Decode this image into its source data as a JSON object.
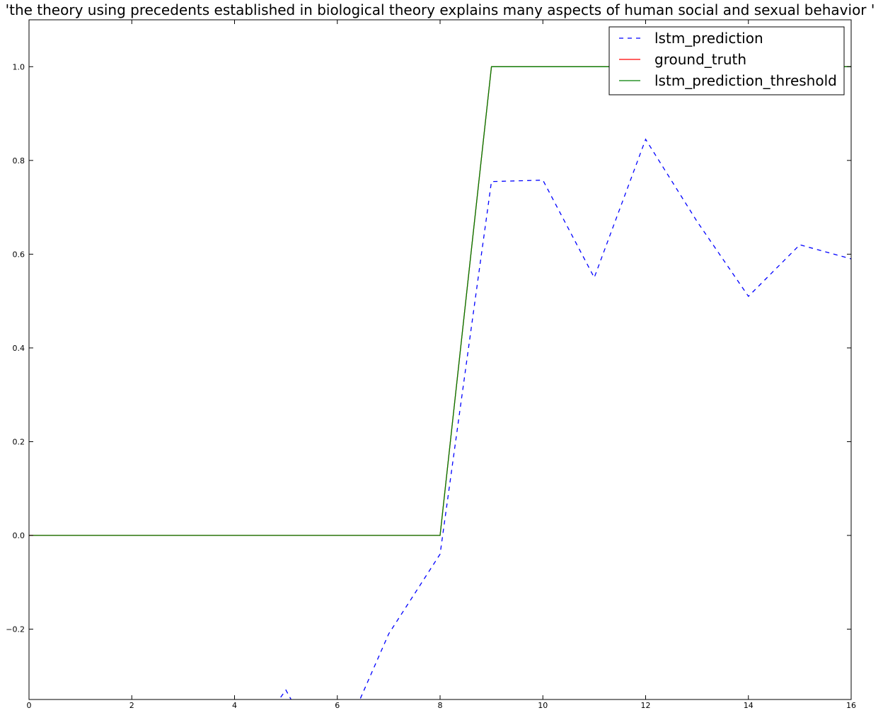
{
  "chart_data": {
    "type": "line",
    "title": "'the theory using precedents established in biological theory explains many aspects of human social and sexual behavior '",
    "xlabel": "",
    "ylabel": "",
    "xlim": [
      0,
      16
    ],
    "ylim": [
      -0.35,
      1.1
    ],
    "x_ticks": [
      0,
      2,
      4,
      6,
      8,
      10,
      12,
      14,
      16
    ],
    "y_ticks": [
      -0.2,
      0.0,
      0.2,
      0.4,
      0.6,
      0.8,
      1.0
    ],
    "x_tick_labels": [
      "0",
      "2",
      "4",
      "6",
      "8",
      "10",
      "12",
      "14",
      "16"
    ],
    "y_tick_labels": [
      "−0.2",
      "0.0",
      "0.2",
      "0.4",
      "0.6",
      "0.8",
      "1.0"
    ],
    "grid": false,
    "legend_position": "top-right",
    "series": [
      {
        "name": "lstm_prediction",
        "color": "#0000ff",
        "style": "dashed",
        "x": [
          4.8,
          5.0,
          5.2,
          6.0,
          6.4,
          7.0,
          8.0,
          9.0,
          10.0,
          11.0,
          12.0,
          13.0,
          14.0,
          15.0,
          16.0
        ],
        "y": [
          -0.36,
          -0.33,
          -0.37,
          -0.42,
          -0.36,
          -0.21,
          -0.04,
          0.755,
          0.758,
          0.55,
          0.845,
          0.67,
          0.51,
          0.62,
          0.59
        ]
      },
      {
        "name": "ground_truth",
        "color": "#ff0000",
        "style": "solid",
        "x": [
          0,
          1,
          2,
          3,
          4,
          5,
          6,
          7,
          8,
          9,
          10,
          11,
          12,
          13,
          14,
          15,
          16
        ],
        "y": [
          0,
          0,
          0,
          0,
          0,
          0,
          0,
          0,
          0,
          1,
          1,
          1,
          1,
          1,
          1,
          1,
          1
        ]
      },
      {
        "name": "lstm_prediction_threshold",
        "color": "#007f00",
        "style": "solid",
        "x": [
          0,
          1,
          2,
          3,
          4,
          5,
          6,
          7,
          8,
          9,
          10,
          11,
          12,
          13,
          14,
          15,
          16
        ],
        "y": [
          0,
          0,
          0,
          0,
          0,
          0,
          0,
          0,
          0,
          1,
          1,
          1,
          1,
          1,
          1,
          1,
          1
        ]
      }
    ]
  }
}
